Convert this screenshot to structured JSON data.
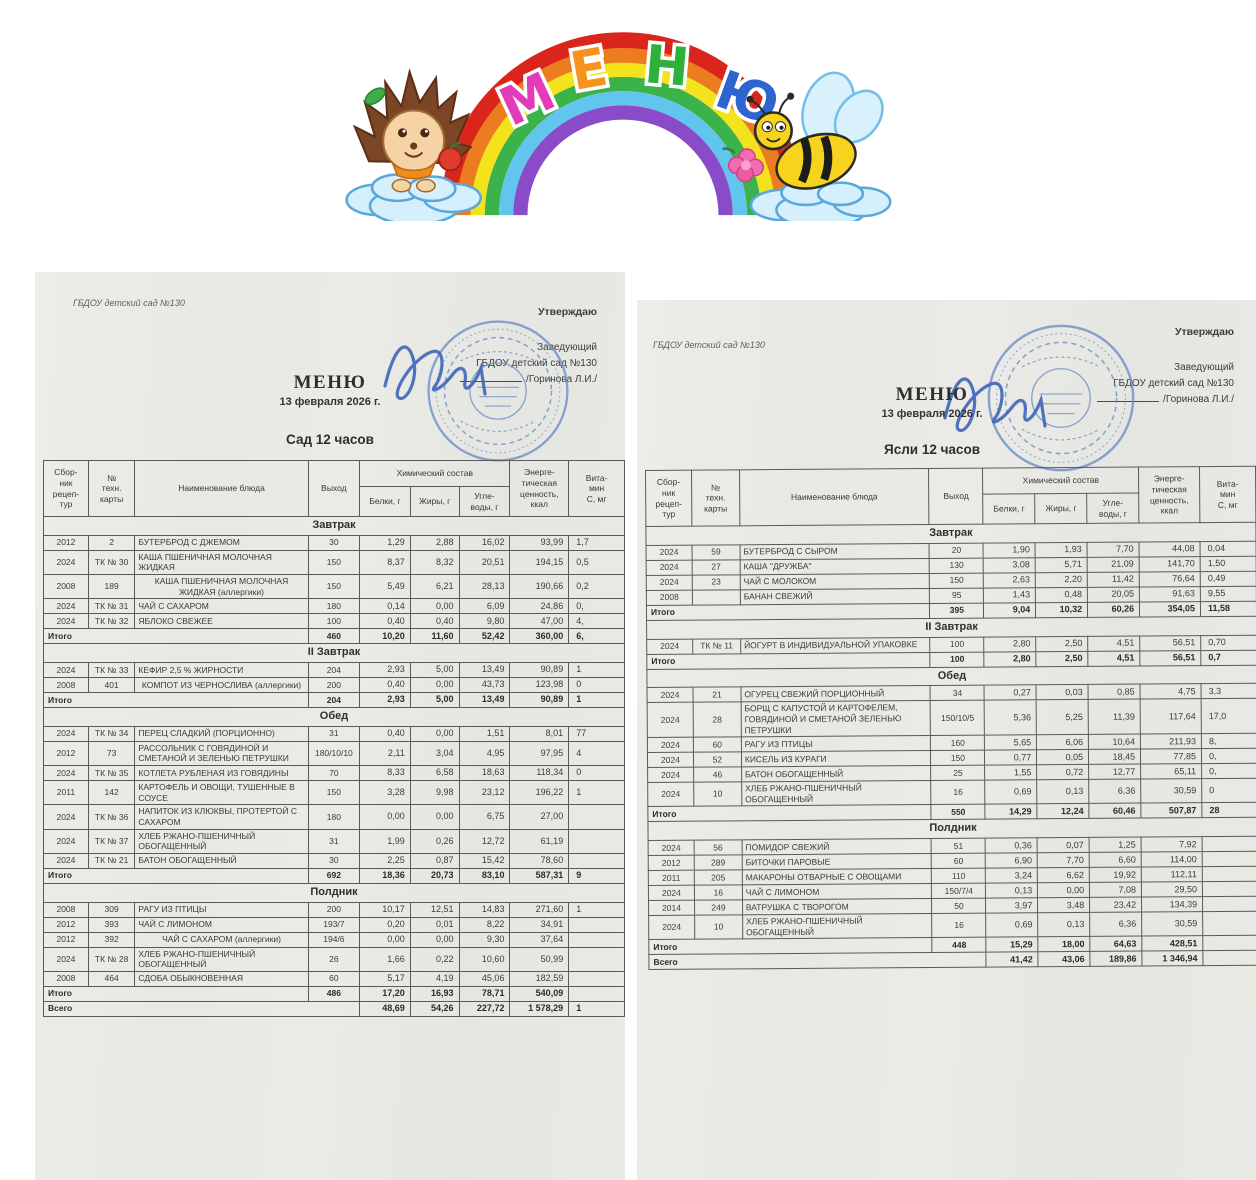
{
  "banner": {
    "title": "МЕНЮ",
    "letters": [
      {
        "char": "М",
        "color": "#e23cb9"
      },
      {
        "char": "Е",
        "color": "#f6921e"
      },
      {
        "char": "Н",
        "color": "#2eb13c"
      },
      {
        "char": "Ю",
        "color": "#2f63d0"
      }
    ],
    "rainbow_colors": [
      "#da251d",
      "#ec7c20",
      "#f2e31d",
      "#3cb24a",
      "#62c5ee",
      "#8a4bc9"
    ],
    "characters": [
      "hedgehog",
      "bee"
    ]
  },
  "columns": {
    "source": "Сбор-\nник\nрецеп-\nтур",
    "card": "№\nтехн.\nкарты",
    "dish": "Наименование блюда",
    "out": "Выход",
    "chem": "Химический состав",
    "protein": "Белки, г",
    "fat": "Жиры, г",
    "carbs": "Угле-\nводы, г",
    "energy": "Энерге-\nтическая\nценность,\nккал",
    "vitc": "Вита-\nмин\nС, мг"
  },
  "documents": [
    {
      "org": "ГБДОУ детский сад №130",
      "approve_label": "Утверждаю",
      "approver_role": "Заведующий",
      "approver_org": "ГБДОУ детский сад №130",
      "approver_name": "/Горинова Л.И./",
      "title": "МЕНЮ",
      "date": "13 февраля 2026 г.",
      "subtitle": "Сад 12 часов",
      "totals_label": "Итого",
      "grand_total_label": "Всего",
      "sections": [
        {
          "name": "Завтрак",
          "rows": [
            {
              "src": "2012",
              "card": "2",
              "name": "БУТЕРБРОД С ДЖЕМОМ",
              "out": "30",
              "protein": "1,29",
              "fat": "2,88",
              "carbs": "16,02",
              "kcal": "93,99",
              "vitc": "1,7"
            },
            {
              "src": "2024",
              "card": "ТК № 30",
              "name": "КАША ПШЕНИЧНАЯ МОЛОЧНАЯ ЖИДКАЯ",
              "out": "150",
              "protein": "8,37",
              "fat": "8,32",
              "carbs": "20,51",
              "kcal": "194,15",
              "vitc": "0,5"
            },
            {
              "src": "2008",
              "card": "189",
              "name": "КАША ПШЕНИЧНАЯ МОЛОЧНАЯ ЖИДКАЯ (аллергики)",
              "out": "150",
              "protein": "5,49",
              "fat": "6,21",
              "carbs": "28,13",
              "kcal": "190,66",
              "vitc": "0,2",
              "center": true
            },
            {
              "src": "2024",
              "card": "ТК № 31",
              "name": "ЧАЙ С САХАРОМ",
              "out": "180",
              "protein": "0,14",
              "fat": "0,00",
              "carbs": "6,09",
              "kcal": "24,86",
              "vitc": "0,"
            },
            {
              "src": "2024",
              "card": "ТК № 32",
              "name": "ЯБЛОКО СВЕЖЕЕ",
              "out": "100",
              "protein": "0,40",
              "fat": "0,40",
              "carbs": "9,80",
              "kcal": "47,00",
              "vitc": "4,"
            }
          ],
          "total": {
            "out": "460",
            "protein": "10,20",
            "fat": "11,60",
            "carbs": "52,42",
            "kcal": "360,00",
            "vitc": "6,"
          }
        },
        {
          "name": "II Завтрак",
          "rows": [
            {
              "src": "2024",
              "card": "ТК № 33",
              "name": "КЕФИР 2,5 % ЖИРНОСТИ",
              "out": "204",
              "protein": "2,93",
              "fat": "5,00",
              "carbs": "13,49",
              "kcal": "90,89",
              "vitc": "1"
            },
            {
              "src": "2008",
              "card": "401",
              "name": "КОМПОТ ИЗ ЧЕРНОСЛИВА (аллергики)",
              "out": "200",
              "protein": "0,40",
              "fat": "0,00",
              "carbs": "43,73",
              "kcal": "123,98",
              "vitc": "0",
              "center": true
            }
          ],
          "total": {
            "out": "204",
            "protein": "2,93",
            "fat": "5,00",
            "carbs": "13,49",
            "kcal": "90,89",
            "vitc": "1"
          }
        },
        {
          "name": "Обед",
          "rows": [
            {
              "src": "2024",
              "card": "ТК № 34",
              "name": "ПЕРЕЦ СЛАДКИЙ (ПОРЦИОННО)",
              "out": "31",
              "protein": "0,40",
              "fat": "0,00",
              "carbs": "1,51",
              "kcal": "8,01",
              "vitc": "77"
            },
            {
              "src": "2012",
              "card": "73",
              "name": "РАССОЛЬНИК С ГОВЯДИНОЙ И СМЕТАНОЙ И ЗЕЛЕНЬЮ ПЕТРУШКИ",
              "out": "180/10/10",
              "protein": "2,11",
              "fat": "3,04",
              "carbs": "4,95",
              "kcal": "97,95",
              "vitc": "4"
            },
            {
              "src": "2024",
              "card": "ТК № 35",
              "name": "КОТЛЕТА РУБЛЕНАЯ ИЗ ГОВЯДИНЫ",
              "out": "70",
              "protein": "8,33",
              "fat": "6,58",
              "carbs": "18,63",
              "kcal": "118,34",
              "vitc": "0"
            },
            {
              "src": "2011",
              "card": "142",
              "name": "КАРТОФЕЛЬ И ОВОЩИ, ТУШЕННЫЕ В СОУСЕ",
              "out": "150",
              "protein": "3,28",
              "fat": "9,98",
              "carbs": "23,12",
              "kcal": "196,22",
              "vitc": "1"
            },
            {
              "src": "2024",
              "card": "ТК № 36",
              "name": "НАПИТОК ИЗ КЛЮКВЫ, ПРОТЕРТОЙ С САХАРОМ",
              "out": "180",
              "protein": "0,00",
              "fat": "0,00",
              "carbs": "6,75",
              "kcal": "27,00",
              "vitc": ""
            },
            {
              "src": "2024",
              "card": "ТК № 37",
              "name": "ХЛЕБ РЖАНО-ПШЕНИЧНЫЙ ОБОГАЩЕННЫЙ",
              "out": "31",
              "protein": "1,99",
              "fat": "0,26",
              "carbs": "12,72",
              "kcal": "61,19",
              "vitc": ""
            },
            {
              "src": "2024",
              "card": "ТК № 21",
              "name": "БАТОН ОБОГАЩЕННЫЙ",
              "out": "30",
              "protein": "2,25",
              "fat": "0,87",
              "carbs": "15,42",
              "kcal": "78,60",
              "vitc": ""
            }
          ],
          "total": {
            "out": "692",
            "protein": "18,36",
            "fat": "20,73",
            "carbs": "83,10",
            "kcal": "587,31",
            "vitc": "9"
          }
        },
        {
          "name": "Полдник",
          "rows": [
            {
              "src": "2008",
              "card": "309",
              "name": "РАГУ ИЗ ПТИЦЫ",
              "out": "200",
              "protein": "10,17",
              "fat": "12,51",
              "carbs": "14,83",
              "kcal": "271,60",
              "vitc": "1"
            },
            {
              "src": "2012",
              "card": "393",
              "name": "ЧАЙ С ЛИМОНОМ",
              "out": "193/7",
              "protein": "0,20",
              "fat": "0,01",
              "carbs": "8,22",
              "kcal": "34,91",
              "vitc": ""
            },
            {
              "src": "2012",
              "card": "392",
              "name": "ЧАЙ С САХАРОМ (аллергики)",
              "out": "194/6",
              "protein": "0,00",
              "fat": "0,00",
              "carbs": "9,30",
              "kcal": "37,64",
              "vitc": "",
              "center": true
            },
            {
              "src": "2024",
              "card": "ТК № 28",
              "name": "ХЛЕБ РЖАНО-ПШЕНИЧНЫЙ ОБОГАЩЕННЫЙ",
              "out": "26",
              "protein": "1,66",
              "fat": "0,22",
              "carbs": "10,60",
              "kcal": "50,99",
              "vitc": ""
            },
            {
              "src": "2008",
              "card": "464",
              "name": "СДОБА ОБЫКНОВЕННАЯ",
              "out": "60",
              "protein": "5,17",
              "fat": "4,19",
              "carbs": "45,06",
              "kcal": "182,59",
              "vitc": ""
            }
          ],
          "total": {
            "out": "486",
            "protein": "17,20",
            "fat": "16,93",
            "carbs": "78,71",
            "kcal": "540,09",
            "vitc": ""
          }
        }
      ],
      "grand_total": {
        "protein": "48,69",
        "fat": "54,26",
        "carbs": "227,72",
        "kcal": "1 578,29",
        "vitc": "1"
      }
    },
    {
      "org": "ГБДОУ детский сад №130",
      "approve_label": "Утверждаю",
      "approver_role": "Заведующий",
      "approver_org": "ГБДОУ детский сад №130",
      "approver_name": "/Горинова Л.И./",
      "title": "МЕНЮ",
      "date": "13 февраля 2026 г.",
      "subtitle": "Ясли 12 часов",
      "totals_label": "Итого",
      "grand_total_label": "Всего",
      "sections": [
        {
          "name": "Завтрак",
          "rows": [
            {
              "src": "2024",
              "card": "59",
              "name": "БУТЕРБРОД С СЫРОМ",
              "out": "20",
              "protein": "1,90",
              "fat": "1,93",
              "carbs": "7,70",
              "kcal": "44,08",
              "vitc": "0,04"
            },
            {
              "src": "2024",
              "card": "27",
              "name": "КАША \"ДРУЖБА\"",
              "out": "130",
              "protein": "3,08",
              "fat": "5,71",
              "carbs": "21,09",
              "kcal": "141,70",
              "vitc": "1,50"
            },
            {
              "src": "2024",
              "card": "23",
              "name": "ЧАЙ С МОЛОКОМ",
              "out": "150",
              "protein": "2,63",
              "fat": "2,20",
              "carbs": "11,42",
              "kcal": "76,64",
              "vitc": "0,49"
            },
            {
              "src": "2008",
              "card": "",
              "name": "БАНАН СВЕЖИЙ",
              "out": "95",
              "protein": "1,43",
              "fat": "0,48",
              "carbs": "20,05",
              "kcal": "91,63",
              "vitc": "9,55"
            }
          ],
          "total": {
            "out": "395",
            "protein": "9,04",
            "fat": "10,32",
            "carbs": "60,26",
            "kcal": "354,05",
            "vitc": "11,58"
          }
        },
        {
          "name": "II Завтрак",
          "rows": [
            {
              "src": "2024",
              "card": "ТК № 11",
              "name": "ЙОГУРТ В ИНДИВИДУАЛЬНОЙ УПАКОВКЕ",
              "out": "100",
              "protein": "2,80",
              "fat": "2,50",
              "carbs": "4,51",
              "kcal": "56,51",
              "vitc": "0,70"
            }
          ],
          "total": {
            "out": "100",
            "protein": "2,80",
            "fat": "2,50",
            "carbs": "4,51",
            "kcal": "56,51",
            "vitc": "0,7"
          }
        },
        {
          "name": "Обед",
          "rows": [
            {
              "src": "2024",
              "card": "21",
              "name": "ОГУРЕЦ СВЕЖИЙ ПОРЦИОННЫЙ",
              "out": "34",
              "protein": "0,27",
              "fat": "0,03",
              "carbs": "0,85",
              "kcal": "4,75",
              "vitc": "3,3"
            },
            {
              "src": "2024",
              "card": "28",
              "name": "БОРЩ С КАПУСТОЙ И КАРТОФЕЛЕМ, ГОВЯДИНОЙ И СМЕТАНОЙ ЗЕЛЕНЬЮ ПЕТРУШКИ",
              "out": "150/10/5",
              "protein": "5,36",
              "fat": "5,25",
              "carbs": "11,39",
              "kcal": "117,64",
              "vitc": "17,0"
            },
            {
              "src": "2024",
              "card": "60",
              "name": "РАГУ ИЗ ПТИЦЫ",
              "out": "160",
              "protein": "5,65",
              "fat": "6,06",
              "carbs": "10,64",
              "kcal": "211,93",
              "vitc": "8,"
            },
            {
              "src": "2024",
              "card": "52",
              "name": "КИСЕЛЬ ИЗ КУРАГИ",
              "out": "150",
              "protein": "0,77",
              "fat": "0,05",
              "carbs": "18,45",
              "kcal": "77,85",
              "vitc": "0,"
            },
            {
              "src": "2024",
              "card": "46",
              "name": "БАТОН ОБОГАЩЕННЫЙ",
              "out": "25",
              "protein": "1,55",
              "fat": "0,72",
              "carbs": "12,77",
              "kcal": "65,11",
              "vitc": "0,"
            },
            {
              "src": "2024",
              "card": "10",
              "name": "ХЛЕБ РЖАНО-ПШЕНИЧНЫЙ ОБОГАЩЕННЫЙ",
              "out": "16",
              "protein": "0,69",
              "fat": "0,13",
              "carbs": "6,36",
              "kcal": "30,59",
              "vitc": "0"
            }
          ],
          "total": {
            "out": "550",
            "protein": "14,29",
            "fat": "12,24",
            "carbs": "60,46",
            "kcal": "507,87",
            "vitc": "28"
          }
        },
        {
          "name": "Полдник",
          "rows": [
            {
              "src": "2024",
              "card": "56",
              "name": "ПОМИДОР СВЕЖИЙ",
              "out": "51",
              "protein": "0,36",
              "fat": "0,07",
              "carbs": "1,25",
              "kcal": "7,92",
              "vitc": ""
            },
            {
              "src": "2012",
              "card": "289",
              "name": "БИТОЧКИ ПАРОВЫЕ",
              "out": "60",
              "protein": "6,90",
              "fat": "7,70",
              "carbs": "6,60",
              "kcal": "114,00",
              "vitc": ""
            },
            {
              "src": "2011",
              "card": "205",
              "name": "МАКАРОНЫ ОТВАРНЫЕ С ОВОЩАМИ",
              "out": "110",
              "protein": "3,24",
              "fat": "6,62",
              "carbs": "19,92",
              "kcal": "112,11",
              "vitc": ""
            },
            {
              "src": "2024",
              "card": "16",
              "name": "ЧАЙ С ЛИМОНОМ",
              "out": "150/7/4",
              "protein": "0,13",
              "fat": "0,00",
              "carbs": "7,08",
              "kcal": "29,50",
              "vitc": ""
            },
            {
              "src": "2014",
              "card": "249",
              "name": "ВАТРУШКА С ТВОРОГОМ",
              "out": "50",
              "protein": "3,97",
              "fat": "3,48",
              "carbs": "23,42",
              "kcal": "134,39",
              "vitc": ""
            },
            {
              "src": "2024",
              "card": "10",
              "name": "ХЛЕБ РЖАНО-ПШЕНИЧНЫЙ ОБОГАЩЕННЫЙ",
              "out": "16",
              "protein": "0,69",
              "fat": "0,13",
              "carbs": "6,36",
              "kcal": "30,59",
              "vitc": ""
            }
          ],
          "total": {
            "out": "448",
            "protein": "15,29",
            "fat": "18,00",
            "carbs": "64,63",
            "kcal": "428,51",
            "vitc": ""
          }
        }
      ],
      "grand_total": {
        "protein": "41,42",
        "fat": "43,06",
        "carbs": "189,86",
        "kcal": "1 346,94",
        "vitc": ""
      }
    }
  ]
}
